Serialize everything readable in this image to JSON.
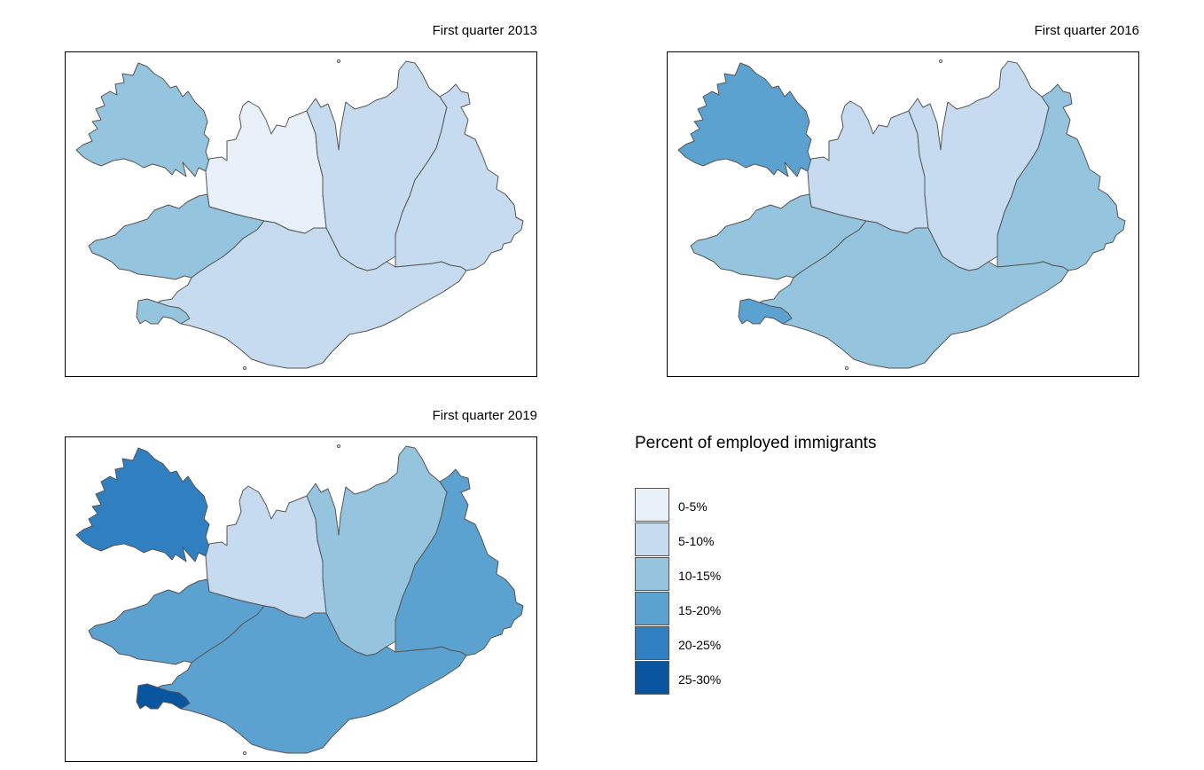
{
  "panels": [
    {
      "title": "First quarter 2013",
      "regions": {
        "westfjords": "10-15%",
        "northwest": "0-5%",
        "northeast": "5-10%",
        "east": "5-10%",
        "west": "10-15%",
        "south": "5-10%",
        "capital": "10-15%"
      }
    },
    {
      "title": "First quarter 2016",
      "regions": {
        "westfjords": "15-20%",
        "northwest": "5-10%",
        "northeast": "5-10%",
        "east": "10-15%",
        "west": "10-15%",
        "south": "10-15%",
        "capital": "15-20%"
      }
    },
    {
      "title": "First quarter 2019",
      "regions": {
        "westfjords": "20-25%",
        "northwest": "5-10%",
        "northeast": "10-15%",
        "east": "15-20%",
        "west": "15-20%",
        "south": "15-20%",
        "capital": "25-30%"
      }
    }
  ],
  "legend": {
    "title": "Percent of employed immigrants",
    "classes": [
      {
        "label": "0-5%",
        "color": "#e8f1fa"
      },
      {
        "label": "5-10%",
        "color": "#c6dbef"
      },
      {
        "label": "10-15%",
        "color": "#95c4de"
      },
      {
        "label": "15-20%",
        "color": "#5ba2d0"
      },
      {
        "label": "20-25%",
        "color": "#2f7fc1"
      },
      {
        "label": "25-30%",
        "color": "#0a55a0"
      }
    ]
  }
}
